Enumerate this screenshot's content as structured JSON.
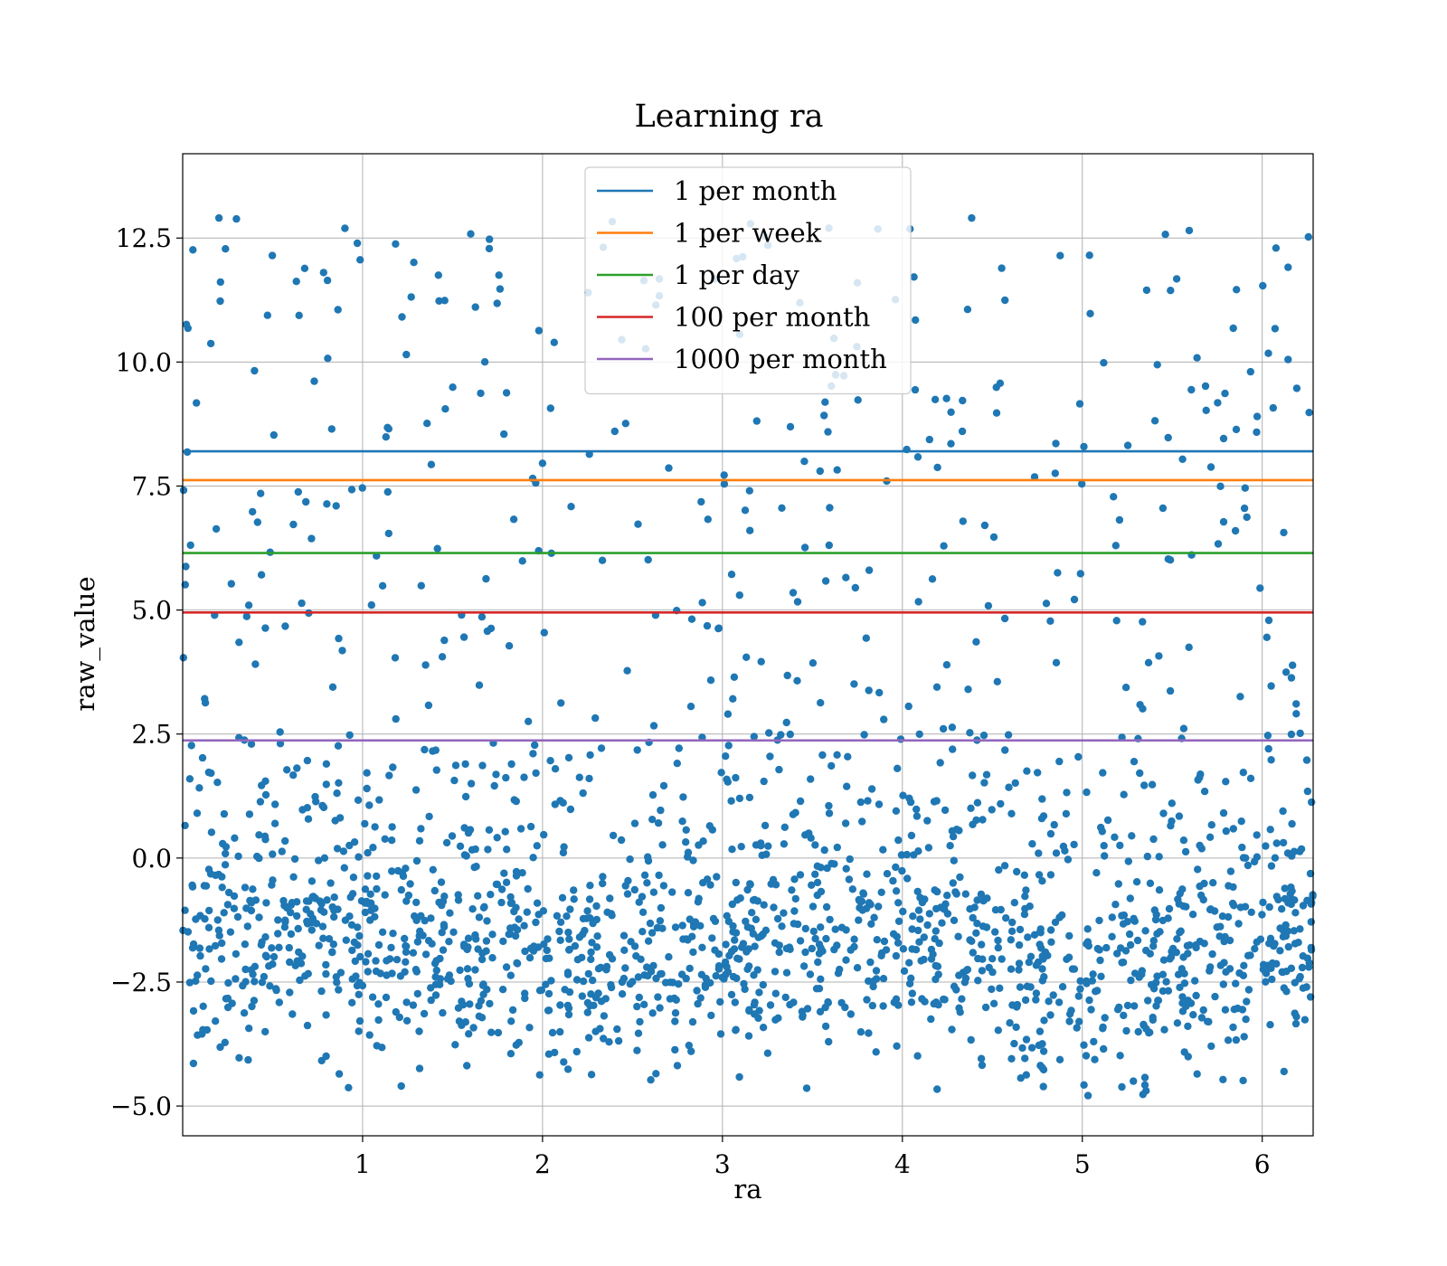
{
  "chart_data": {
    "type": "scatter",
    "title": "Learning ra",
    "xlabel": "ra",
    "ylabel": "raw_value",
    "xlim": [
      0,
      6.283
    ],
    "ylim": [
      -5.6,
      14.2
    ],
    "x_ticks": [
      1,
      2,
      3,
      4,
      5,
      6
    ],
    "x_tick_labels": [
      "1",
      "2",
      "3",
      "4",
      "5",
      "6"
    ],
    "y_ticks": [
      -5.0,
      -2.5,
      0.0,
      2.5,
      5.0,
      7.5,
      10.0,
      12.5
    ],
    "y_tick_labels": [
      "−5.0",
      "−2.5",
      "0.0",
      "2.5",
      "5.0",
      "7.5",
      "10.0",
      "12.5"
    ],
    "grid": true,
    "legend_position": "top-center",
    "scatter_color": "#1f77b4",
    "scatter_points": [],
    "scatter_generation": {
      "count": 2000,
      "x_range": [
        0,
        6.283
      ],
      "seed": 42
    },
    "series": [
      {
        "name": "1 per month",
        "y": 8.2,
        "color": "#1f77b4"
      },
      {
        "name": "1 per week",
        "y": 7.62,
        "color": "#ff7f0e"
      },
      {
        "name": "1 per day",
        "y": 6.15,
        "color": "#2ca02c"
      },
      {
        "name": "100 per month",
        "y": 4.95,
        "color": "#d62728"
      },
      {
        "name": "1000 per month",
        "y": 2.37,
        "color": "#9467bd"
      }
    ]
  }
}
